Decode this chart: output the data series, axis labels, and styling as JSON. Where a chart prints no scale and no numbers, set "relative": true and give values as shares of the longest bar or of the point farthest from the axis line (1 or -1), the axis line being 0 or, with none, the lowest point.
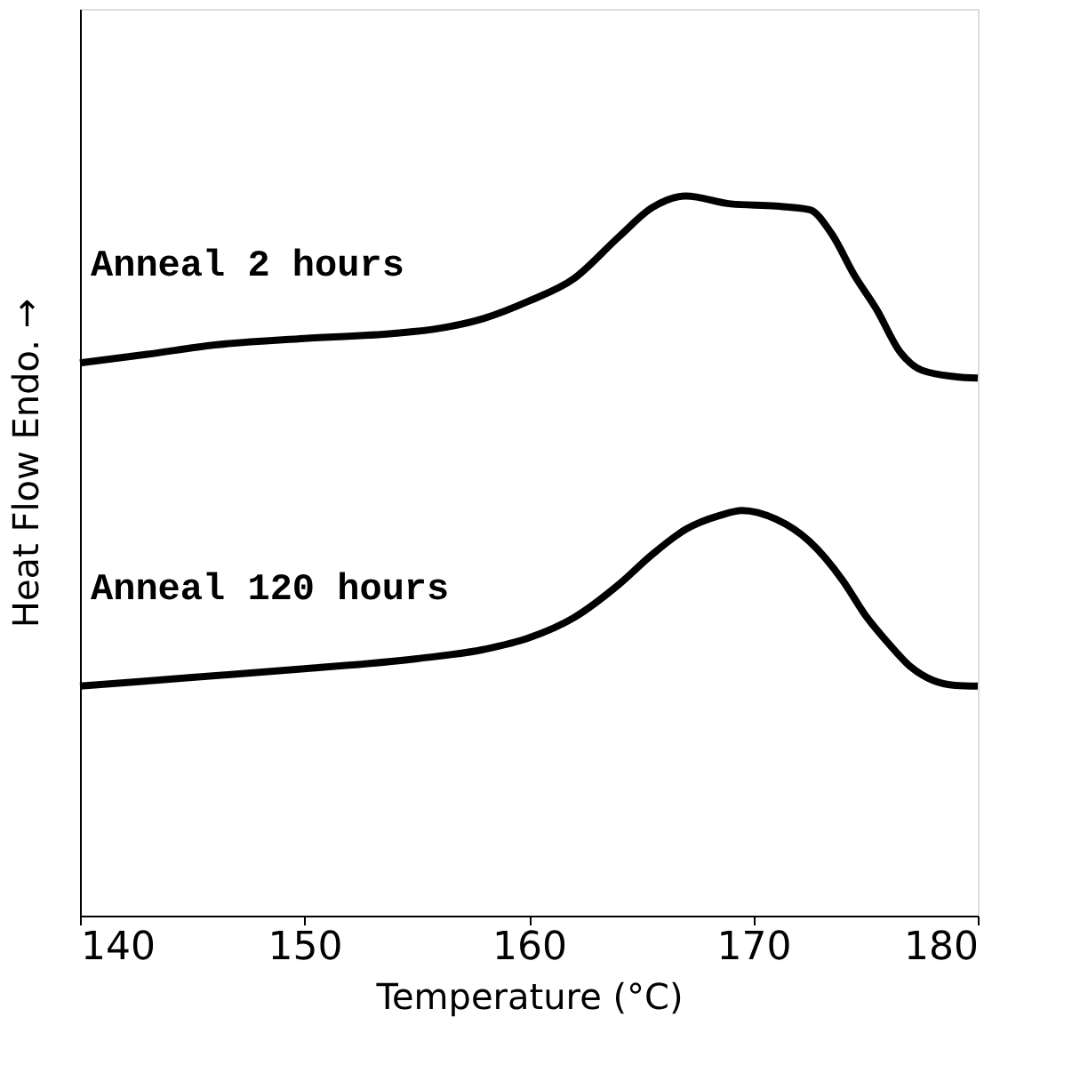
{
  "chart_data": {
    "type": "line",
    "relative": true,
    "xlabel": "Temperature (°C)",
    "ylabel": "Heat Flow Endo. →",
    "xlim": [
      140,
      180
    ],
    "xticks": [
      140,
      150,
      160,
      170,
      180
    ],
    "grid": false,
    "legend": false,
    "marker": "none",
    "line_style": "solid",
    "series": [
      {
        "name": "Anneal 2 hours",
        "color": "#000000",
        "x": [
          140,
          143,
          146,
          150,
          154,
          156,
          158,
          160,
          162,
          164,
          165.5,
          167,
          169,
          171,
          172.5,
          173.5,
          174.5,
          175.5,
          176.5,
          177.5,
          179,
          180
        ],
        "values": [
          0.768,
          0.78,
          0.793,
          0.802,
          0.809,
          0.816,
          0.83,
          0.854,
          0.885,
          0.943,
          0.984,
          1.0,
          0.989,
          0.986,
          0.981,
          0.947,
          0.89,
          0.842,
          0.785,
          0.758,
          0.749,
          0.747
        ]
      },
      {
        "name": "Anneal 120 hours",
        "color": "#000000",
        "x": [
          140,
          145,
          150,
          155,
          158,
          160,
          162,
          164,
          165.5,
          167,
          168.5,
          169.5,
          171,
          172.5,
          174,
          175,
          176,
          177,
          178,
          179,
          180
        ],
        "values": [
          0.319,
          0.331,
          0.343,
          0.357,
          0.37,
          0.386,
          0.414,
          0.46,
          0.502,
          0.537,
          0.556,
          0.563,
          0.551,
          0.52,
          0.465,
          0.417,
          0.379,
          0.346,
          0.327,
          0.32,
          0.319
        ]
      }
    ]
  }
}
